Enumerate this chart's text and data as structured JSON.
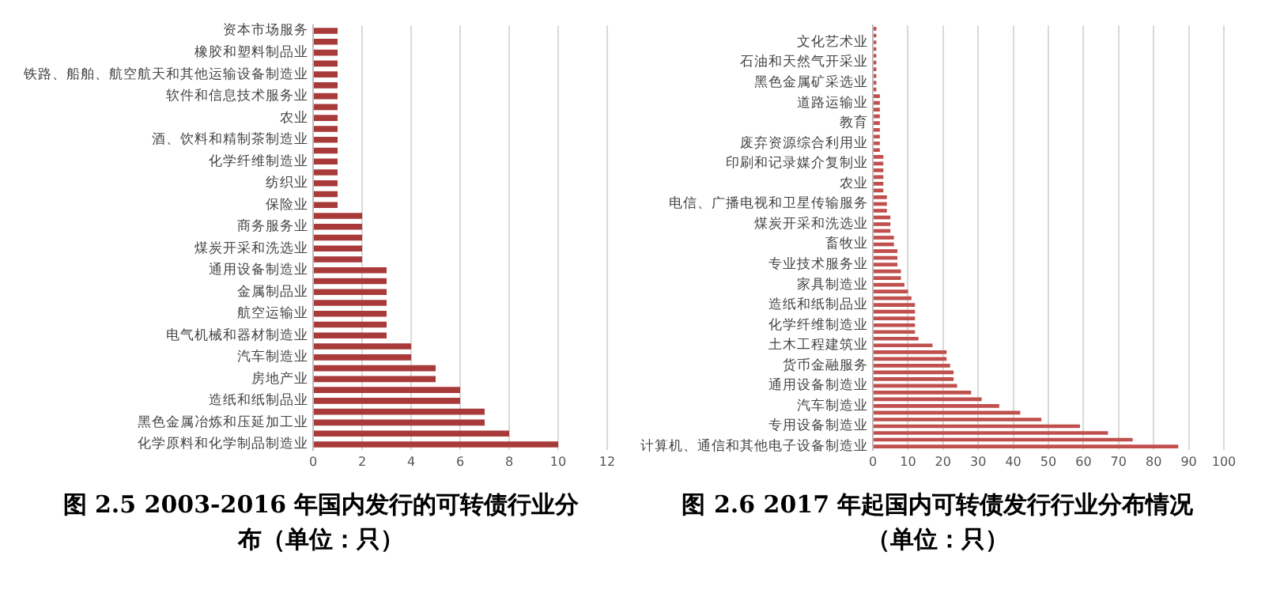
{
  "chart_data": [
    {
      "type": "bar",
      "orientation": "horizontal",
      "title": "图 2.5   2003-2016 年国内发行的可转债行业分布（单位：只）",
      "categories": [
        "资本市场服务",
        null,
        "橡胶和塑料制品业",
        null,
        "铁路、船舶、航空航天和其他运输设备制造业",
        null,
        "软件和信息技术服务业",
        null,
        "农业",
        null,
        "酒、饮料和精制茶制造业",
        null,
        "化学纤维制造业",
        null,
        "纺织业",
        null,
        "保险业",
        null,
        "商务服务业",
        null,
        "煤炭开采和洗选业",
        null,
        "通用设备制造业",
        null,
        "金属制品业",
        null,
        "航空运输业",
        null,
        "电气机械和器材制造业",
        null,
        "汽车制造业",
        null,
        "房地产业",
        null,
        "造纸和纸制品业",
        null,
        "黑色金属冶炼和压延加工业",
        null,
        "化学原料和化学制品制造业"
      ],
      "values": [
        1,
        1,
        1,
        1,
        1,
        1,
        1,
        1,
        1,
        1,
        1,
        1,
        1,
        1,
        1,
        1,
        1,
        2,
        2,
        2,
        2,
        2,
        3,
        3,
        3,
        3,
        3,
        3,
        3,
        4,
        4,
        5,
        5,
        6,
        6,
        7,
        7,
        8,
        10
      ],
      "color": "#a83a3a",
      "xlim": [
        0,
        12
      ],
      "xticks": [
        0,
        2,
        4,
        6,
        8,
        10,
        12
      ],
      "grid": "x"
    },
    {
      "type": "bar",
      "orientation": "horizontal",
      "title": "图 2.6   2017 年起国内可转债发行行业分布情况（单位：只）",
      "categories": [
        null,
        null,
        "文化艺术业",
        null,
        null,
        "石油和天然气开采业",
        null,
        null,
        "黑色金属矿采选业",
        null,
        null,
        "道路运输业",
        null,
        null,
        "教育",
        null,
        null,
        "废弃资源综合利用业",
        null,
        null,
        "印刷和记录媒介复制业",
        null,
        null,
        "农业",
        null,
        null,
        "电信、广播电视和卫星传输服务",
        null,
        null,
        "煤炭开采和洗选业",
        null,
        null,
        "畜牧业",
        null,
        null,
        "专业技术服务业",
        null,
        null,
        "家具制造业",
        null,
        null,
        "造纸和纸制品业",
        null,
        null,
        "化学纤维制造业",
        null,
        null,
        "土木工程建筑业",
        null,
        null,
        "货币金融服务",
        null,
        null,
        "通用设备制造业",
        null,
        null,
        "汽车制造业",
        null,
        null,
        "专用设备制造业",
        null,
        null,
        "计算机、通信和其他电子设备制造业"
      ],
      "values": [
        1,
        1,
        1,
        1,
        1,
        1,
        1,
        1,
        1,
        1,
        2,
        2,
        2,
        2,
        2,
        2,
        2,
        2,
        2,
        3,
        3,
        3,
        3,
        3,
        3,
        4,
        4,
        4,
        5,
        5,
        5,
        6,
        6,
        7,
        7,
        7,
        8,
        8,
        9,
        10,
        11,
        12,
        12,
        12,
        12,
        12,
        13,
        17,
        21,
        21,
        22,
        23,
        23,
        24,
        28,
        31,
        36,
        42,
        48,
        59,
        67,
        74,
        87
      ],
      "color": "#c0504d",
      "xlim": [
        0,
        100
      ],
      "xticks": [
        0,
        10,
        20,
        30,
        40,
        50,
        60,
        70,
        80,
        90,
        100
      ],
      "grid": "x"
    }
  ]
}
